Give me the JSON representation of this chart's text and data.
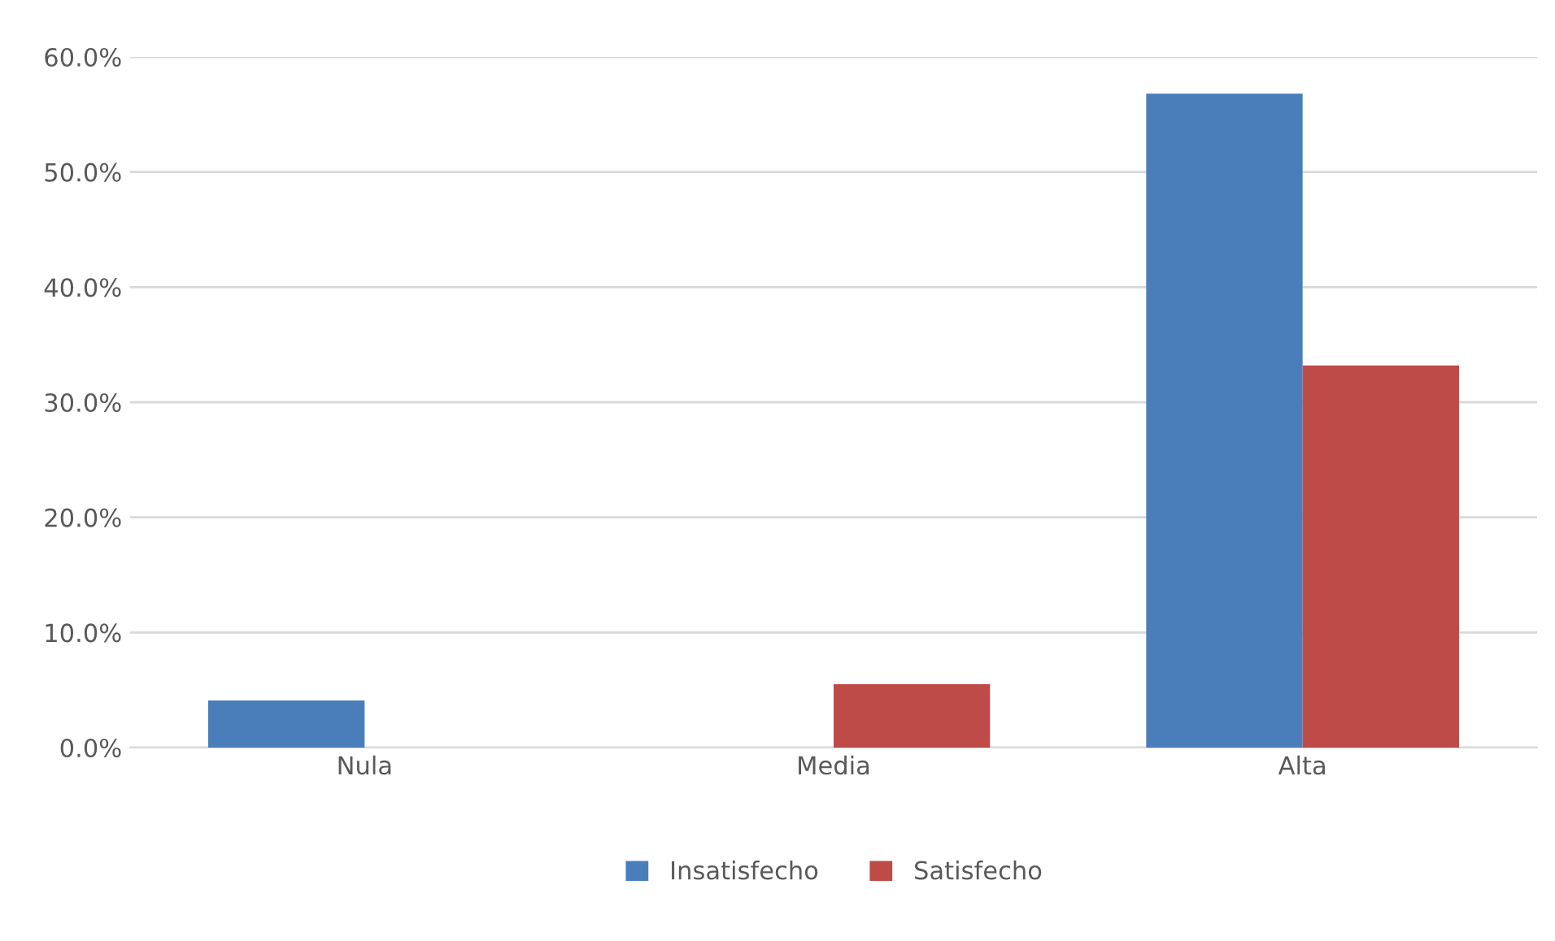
{
  "chart_data": {
    "type": "bar",
    "categories": [
      "Nula",
      "Media",
      "Alta"
    ],
    "series": [
      {
        "name": "Insatisfecho",
        "color": "#4a7ebb",
        "values": [
          4.1,
          null,
          56.8
        ]
      },
      {
        "name": "Satisfecho",
        "color": "#be4b48",
        "values": [
          null,
          5.5,
          33.2
        ]
      }
    ],
    "ylim": [
      0,
      60
    ],
    "yticks": [
      {
        "value": 0,
        "label": "0.0%"
      },
      {
        "value": 10,
        "label": "10.0%"
      },
      {
        "value": 20,
        "label": "20.0%"
      },
      {
        "value": 30,
        "label": "30.0%"
      },
      {
        "value": 40,
        "label": "40.0%"
      },
      {
        "value": 50,
        "label": "50.0%"
      },
      {
        "value": 60,
        "label": "60.0%"
      }
    ],
    "grid": "y",
    "legend": "bottom"
  }
}
